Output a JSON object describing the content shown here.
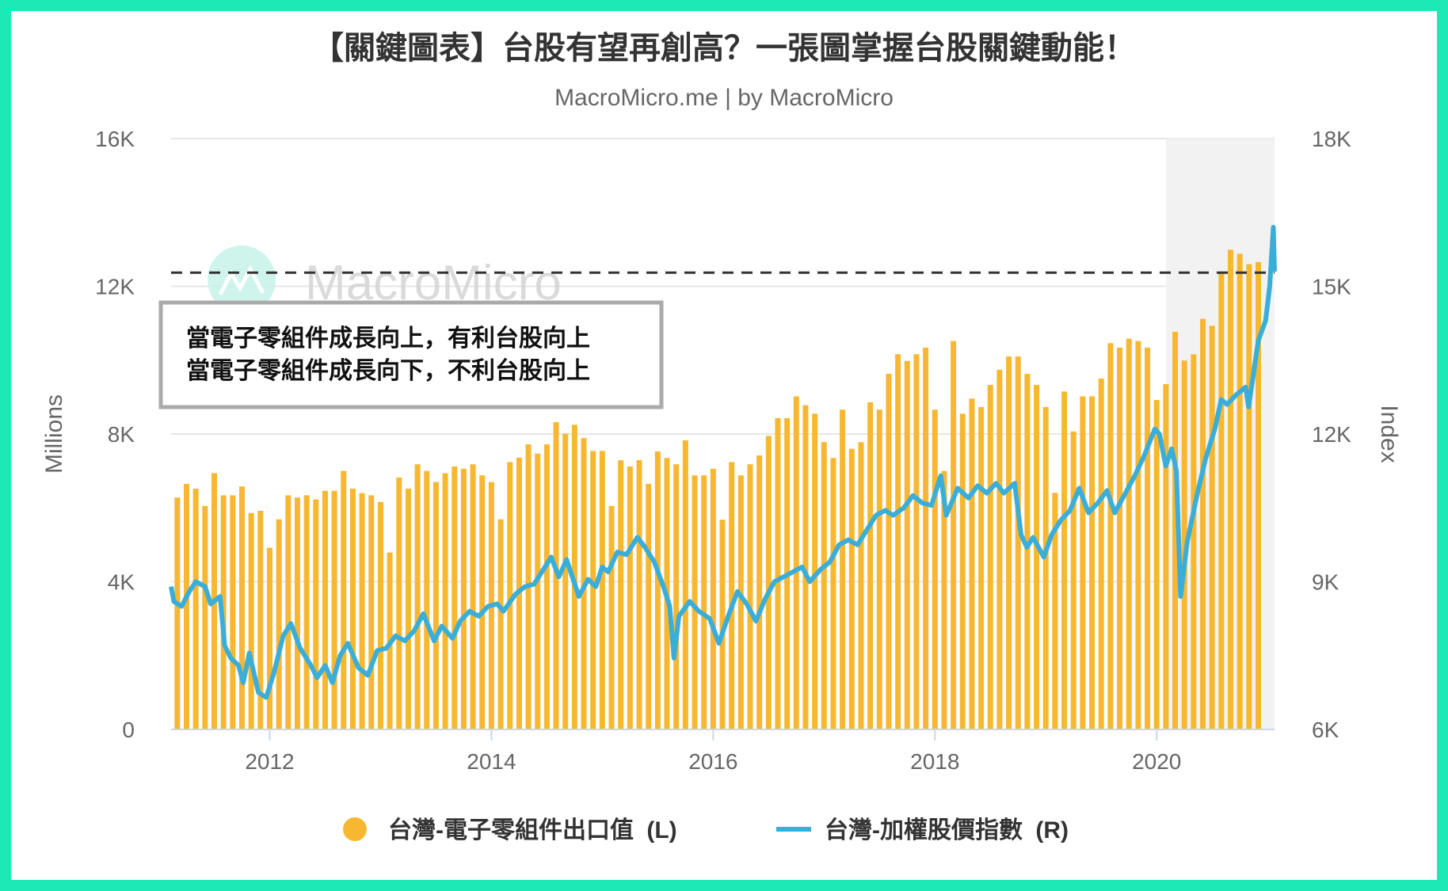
{
  "chart_data": {
    "type": "bar+line",
    "title": "【關鍵圖表】台股有望再創高？一張圖掌握台股關鍵動能！",
    "subtitle": "MacroMicro.me | by MacroMicro",
    "watermark": "MacroMicro",
    "annotation": [
      "當電子零組件成長向上，有利台股向上",
      "當電子零組件成長向下，不利台股向上"
    ],
    "left_axis": {
      "title": "Millions",
      "range": [
        0,
        16000
      ],
      "ticks": [
        0,
        4000,
        8000,
        12000,
        16000
      ],
      "tick_labels": [
        "0",
        "4K",
        "8K",
        "12K",
        "16K"
      ]
    },
    "right_axis": {
      "title": "Index",
      "range": [
        6000,
        18000
      ],
      "ticks": [
        6000,
        9000,
        12000,
        15000,
        18000
      ],
      "tick_labels": [
        "6K",
        "9K",
        "12K",
        "15K",
        "18K"
      ]
    },
    "x_axis": {
      "range": [
        "2011-02-11",
        "2021-01-24"
      ],
      "tick_labels": [
        "2012",
        "2014",
        "2016",
        "2018",
        "2020"
      ]
    },
    "grid": true,
    "legend_position": "bottom",
    "reference_line": {
      "axis": "left",
      "value": 12370,
      "style": "dashed"
    },
    "shaded_region": {
      "from": "2020-02-01",
      "to": "2021-01-24"
    },
    "colors": {
      "bars": "#f7b731",
      "line": "#3aaed8",
      "frame": "#1de9b6",
      "shade": "#f2f2f2"
    },
    "series": [
      {
        "name": "台灣-電子零組件出口值",
        "legend_suffix": "(L)",
        "type": "bar",
        "axis": "left",
        "start_month": "2011-03",
        "values": [
          6280,
          6650,
          6520,
          6050,
          6940,
          6340,
          6340,
          6580,
          5860,
          5920,
          4920,
          5690,
          6340,
          6280,
          6340,
          6230,
          6460,
          6460,
          7000,
          6520,
          6400,
          6340,
          6160,
          4790,
          6820,
          6520,
          7180,
          7000,
          6700,
          6940,
          7120,
          7060,
          7180,
          6880,
          6700,
          5690,
          7240,
          7360,
          7720,
          7470,
          7720,
          8320,
          8010,
          8250,
          7890,
          7540,
          7540,
          6050,
          7290,
          7120,
          7290,
          6650,
          7530,
          7350,
          7180,
          7830,
          6880,
          6880,
          7060,
          5680,
          7240,
          6880,
          7180,
          7420,
          7950,
          8430,
          8430,
          9020,
          8780,
          8550,
          7780,
          7350,
          8660,
          7600,
          7780,
          8860,
          8660,
          9630,
          10160,
          9980,
          10160,
          10340,
          8660,
          7000,
          10520,
          8550,
          8960,
          8730,
          9330,
          9740,
          10100,
          10100,
          9630,
          9330,
          8730,
          6410,
          9150,
          8070,
          9020,
          9020,
          9500,
          10460,
          10340,
          10580,
          10520,
          10340,
          8920,
          9350,
          10770,
          9990,
          10160,
          11120,
          10930,
          12400,
          12990,
          12880,
          12600,
          12660
        ]
      },
      {
        "name": "台灣-加權股價指數",
        "legend_suffix": "(R)",
        "type": "line",
        "axis": "right",
        "points": [
          [
            "2011-02-11",
            8900
          ],
          [
            "2011-02-20",
            8600
          ],
          [
            "2011-03-15",
            8500
          ],
          [
            "2011-04-10",
            8800
          ],
          [
            "2011-05-01",
            9000
          ],
          [
            "2011-06-01",
            8900
          ],
          [
            "2011-06-20",
            8550
          ],
          [
            "2011-07-20",
            8700
          ],
          [
            "2011-08-05",
            7700
          ],
          [
            "2011-08-25",
            7450
          ],
          [
            "2011-09-20",
            7300
          ],
          [
            "2011-10-05",
            6950
          ],
          [
            "2011-10-25",
            7550
          ],
          [
            "2011-11-25",
            6750
          ],
          [
            "2011-12-20",
            6650
          ],
          [
            "2012-01-15",
            7150
          ],
          [
            "2012-02-15",
            7900
          ],
          [
            "2012-03-10",
            8150
          ],
          [
            "2012-04-10",
            7650
          ],
          [
            "2012-05-15",
            7300
          ],
          [
            "2012-06-05",
            7050
          ],
          [
            "2012-07-01",
            7300
          ],
          [
            "2012-07-25",
            6950
          ],
          [
            "2012-08-20",
            7500
          ],
          [
            "2012-09-15",
            7750
          ],
          [
            "2012-10-20",
            7250
          ],
          [
            "2012-11-20",
            7100
          ],
          [
            "2012-12-20",
            7600
          ],
          [
            "2013-01-20",
            7650
          ],
          [
            "2013-02-20",
            7900
          ],
          [
            "2013-03-20",
            7800
          ],
          [
            "2013-04-20",
            8000
          ],
          [
            "2013-05-20",
            8350
          ],
          [
            "2013-06-25",
            7800
          ],
          [
            "2013-07-20",
            8100
          ],
          [
            "2013-08-25",
            7850
          ],
          [
            "2013-09-20",
            8200
          ],
          [
            "2013-10-20",
            8400
          ],
          [
            "2013-11-20",
            8300
          ],
          [
            "2013-12-20",
            8500
          ],
          [
            "2014-01-20",
            8550
          ],
          [
            "2014-02-10",
            8400
          ],
          [
            "2014-03-20",
            8750
          ],
          [
            "2014-04-20",
            8900
          ],
          [
            "2014-05-20",
            8950
          ],
          [
            "2014-06-20",
            9250
          ],
          [
            "2014-07-15",
            9500
          ],
          [
            "2014-08-10",
            9100
          ],
          [
            "2014-09-05",
            9450
          ],
          [
            "2014-10-15",
            8700
          ],
          [
            "2014-11-15",
            9050
          ],
          [
            "2014-12-10",
            8900
          ],
          [
            "2014-12-31",
            9300
          ],
          [
            "2015-01-20",
            9200
          ],
          [
            "2015-02-20",
            9600
          ],
          [
            "2015-03-20",
            9550
          ],
          [
            "2015-04-25",
            9900
          ],
          [
            "2015-05-20",
            9700
          ],
          [
            "2015-06-20",
            9400
          ],
          [
            "2015-07-20",
            8900
          ],
          [
            "2015-08-10",
            8500
          ],
          [
            "2015-08-24",
            7450
          ],
          [
            "2015-09-10",
            8300
          ],
          [
            "2015-10-15",
            8600
          ],
          [
            "2015-11-15",
            8400
          ],
          [
            "2015-12-20",
            8250
          ],
          [
            "2016-01-20",
            7750
          ],
          [
            "2016-02-20",
            8300
          ],
          [
            "2016-03-20",
            8800
          ],
          [
            "2016-04-20",
            8550
          ],
          [
            "2016-05-20",
            8200
          ],
          [
            "2016-06-20",
            8650
          ],
          [
            "2016-07-20",
            9000
          ],
          [
            "2016-08-20",
            9100
          ],
          [
            "2016-09-20",
            9200
          ],
          [
            "2016-10-20",
            9300
          ],
          [
            "2016-11-15",
            9000
          ],
          [
            "2016-12-20",
            9250
          ],
          [
            "2017-01-20",
            9400
          ],
          [
            "2017-02-20",
            9750
          ],
          [
            "2017-03-20",
            9850
          ],
          [
            "2017-04-20",
            9750
          ],
          [
            "2017-05-20",
            10050
          ],
          [
            "2017-06-20",
            10350
          ],
          [
            "2017-07-20",
            10450
          ],
          [
            "2017-08-15",
            10350
          ],
          [
            "2017-09-20",
            10500
          ],
          [
            "2017-10-20",
            10750
          ],
          [
            "2017-11-20",
            10600
          ],
          [
            "2017-12-20",
            10550
          ],
          [
            "2018-01-20",
            11150
          ],
          [
            "2018-02-08",
            10350
          ],
          [
            "2018-03-15",
            10900
          ],
          [
            "2018-04-20",
            10700
          ],
          [
            "2018-05-20",
            10950
          ],
          [
            "2018-06-20",
            10800
          ],
          [
            "2018-07-20",
            11000
          ],
          [
            "2018-08-15",
            10800
          ],
          [
            "2018-09-20",
            11000
          ],
          [
            "2018-10-11",
            9950
          ],
          [
            "2018-10-30",
            9700
          ],
          [
            "2018-11-20",
            9900
          ],
          [
            "2018-12-25",
            9500
          ],
          [
            "2019-01-20",
            9950
          ],
          [
            "2019-02-20",
            10250
          ],
          [
            "2019-03-20",
            10450
          ],
          [
            "2019-04-20",
            10900
          ],
          [
            "2019-05-20",
            10400
          ],
          [
            "2019-06-20",
            10600
          ],
          [
            "2019-07-20",
            10850
          ],
          [
            "2019-08-15",
            10400
          ],
          [
            "2019-09-20",
            10800
          ],
          [
            "2019-10-20",
            11150
          ],
          [
            "2019-11-20",
            11550
          ],
          [
            "2019-12-25",
            12100
          ],
          [
            "2020-01-10",
            12000
          ],
          [
            "2020-01-31",
            11350
          ],
          [
            "2020-02-20",
            11700
          ],
          [
            "2020-03-05",
            11250
          ],
          [
            "2020-03-19",
            8700
          ],
          [
            "2020-04-10",
            9800
          ],
          [
            "2020-05-10",
            10700
          ],
          [
            "2020-06-10",
            11500
          ],
          [
            "2020-07-10",
            12100
          ],
          [
            "2020-07-31",
            12700
          ],
          [
            "2020-08-20",
            12600
          ],
          [
            "2020-09-20",
            12800
          ],
          [
            "2020-10-20",
            12950
          ],
          [
            "2020-10-30",
            12550
          ],
          [
            "2020-11-15",
            13200
          ],
          [
            "2020-12-01",
            13900
          ],
          [
            "2020-12-25",
            14300
          ],
          [
            "2021-01-08",
            15000
          ],
          [
            "2021-01-20",
            16200
          ],
          [
            "2021-01-24",
            15300
          ]
        ]
      }
    ]
  }
}
